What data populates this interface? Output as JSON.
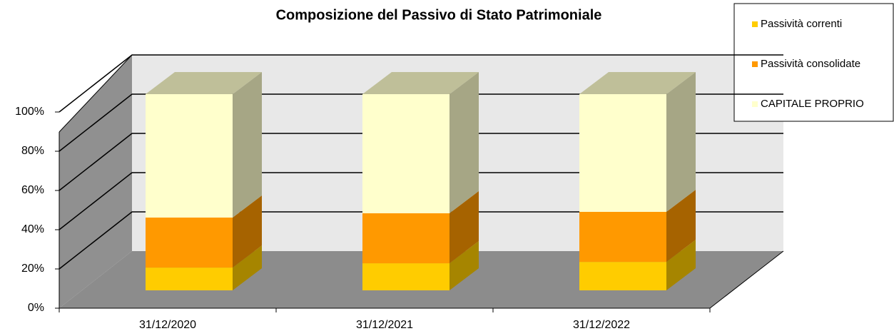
{
  "chart_data": {
    "type": "bar",
    "stacked": true,
    "title": "Composizione del Passivo di Stato Patrimoniale",
    "categories": [
      "31/12/2020",
      "31/12/2021",
      "31/12/2022"
    ],
    "series": [
      {
        "name": "Passività correnti",
        "color": "#ffcc00",
        "values": [
          11.6,
          13.8,
          14.5
        ]
      },
      {
        "name": "Passività consolidate",
        "color": "#ff9900",
        "values": [
          25.5,
          25.5,
          25.5
        ]
      },
      {
        "name": "CAPITALE PROPRIO",
        "color": "#ffffcc",
        "values": [
          62.9,
          60.7,
          60
        ]
      }
    ],
    "ylim": [
      0,
      100
    ],
    "yticks": [
      {
        "value": 0,
        "label": "0%"
      },
      {
        "value": 20,
        "label": "20%"
      },
      {
        "value": 40,
        "label": "40%"
      },
      {
        "value": 60,
        "label": "60%"
      },
      {
        "value": 80,
        "label": "80%"
      },
      {
        "value": 100,
        "label": "100%"
      }
    ],
    "grid": true,
    "legend": "top-right"
  }
}
